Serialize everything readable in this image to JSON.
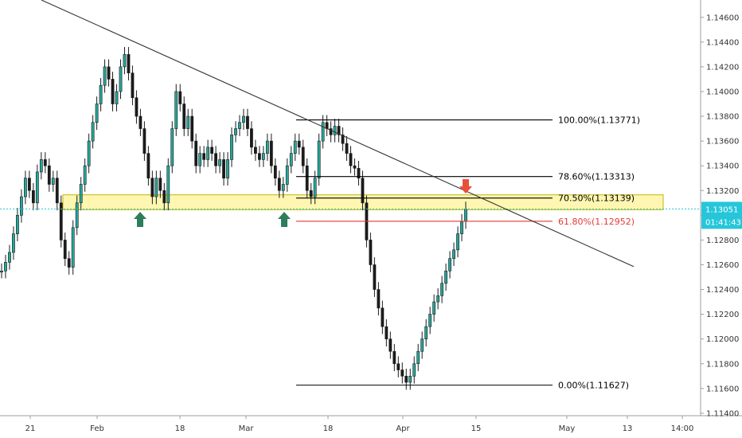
{
  "chart_data": {
    "type": "candlestick",
    "title": "",
    "xlabel": "",
    "ylabel": "",
    "ylim": [
      1.1138,
      1.1474
    ],
    "yticks": [
      "1.14600",
      "1.14400",
      "1.14200",
      "1.14000",
      "1.13800",
      "1.13600",
      "1.13400",
      "1.13200",
      "1.13000",
      "1.12800",
      "1.12600",
      "1.12400",
      "1.12200",
      "1.12000",
      "1.11800",
      "1.11600",
      "1.11400"
    ],
    "xticks": [
      "21",
      "Feb",
      "18",
      "Mar",
      "18",
      "Apr",
      "15",
      "May",
      "13",
      "14:00"
    ],
    "price_line": {
      "value": 1.13051,
      "label": "1.13051",
      "countdown": "01:41:43",
      "color": "#26c6da"
    },
    "fib_levels": [
      {
        "label": "100.00%(1.13771)",
        "value": 1.13771,
        "color": "#000000"
      },
      {
        "label": "78.60%(1.13313)",
        "value": 1.13313,
        "color": "#000000"
      },
      {
        "label": "70.50%(1.13139)",
        "value": 1.13139,
        "color": "#000000"
      },
      {
        "label": "61.80%(1.12952)",
        "value": 1.12952,
        "color": "#e53935"
      },
      {
        "label": "0.00%(1.11627)",
        "value": 1.11627,
        "color": "#000000"
      }
    ],
    "zone": {
      "low": 1.13045,
      "high": 1.13165,
      "color": "#fff59d",
      "border": "#c8b400"
    },
    "trendline_color": "#333333",
    "arrows": [
      {
        "direction": "up",
        "color": "#2e7d5b"
      },
      {
        "direction": "up",
        "color": "#2e7d5b"
      },
      {
        "direction": "down",
        "color": "#e8503a"
      }
    ],
    "series": [
      {
        "values": [
          1.1255,
          1.1262,
          1.127,
          1.1285,
          1.13,
          1.1315,
          1.133,
          1.132,
          1.131,
          1.1335,
          1.1345,
          1.134,
          1.1325,
          1.133,
          1.131,
          1.128,
          1.1265,
          1.1258,
          1.129,
          1.131,
          1.1325,
          1.134,
          1.136,
          1.1375,
          1.139,
          1.1405,
          1.142,
          1.141,
          1.139,
          1.14,
          1.142,
          1.143,
          1.1415,
          1.1395,
          1.138,
          1.137,
          1.135,
          1.133,
          1.1315,
          1.133,
          1.132,
          1.131,
          1.134,
          1.137,
          1.14,
          1.139,
          1.137,
          1.138,
          1.136,
          1.134,
          1.135,
          1.1345,
          1.1355,
          1.135,
          1.134,
          1.1345,
          1.133,
          1.1345,
          1.1365,
          1.137,
          1.1375,
          1.138,
          1.137,
          1.1355,
          1.135,
          1.1345,
          1.135,
          1.136,
          1.134,
          1.133,
          1.132,
          1.1325,
          1.134,
          1.135,
          1.136,
          1.1355,
          1.134,
          1.132,
          1.1315,
          1.133,
          1.136,
          1.1375,
          1.137,
          1.1365,
          1.1372,
          1.1365,
          1.1358,
          1.135,
          1.134,
          1.1338,
          1.133,
          1.131,
          1.128,
          1.126,
          1.124,
          1.1225,
          1.121,
          1.12,
          1.119,
          1.118,
          1.1175,
          1.117,
          1.1165,
          1.117,
          1.118,
          1.119,
          1.12,
          1.121,
          1.122,
          1.123,
          1.1235,
          1.1245,
          1.1255,
          1.1265,
          1.1272,
          1.1285,
          1.1295,
          1.1305
        ]
      }
    ]
  }
}
